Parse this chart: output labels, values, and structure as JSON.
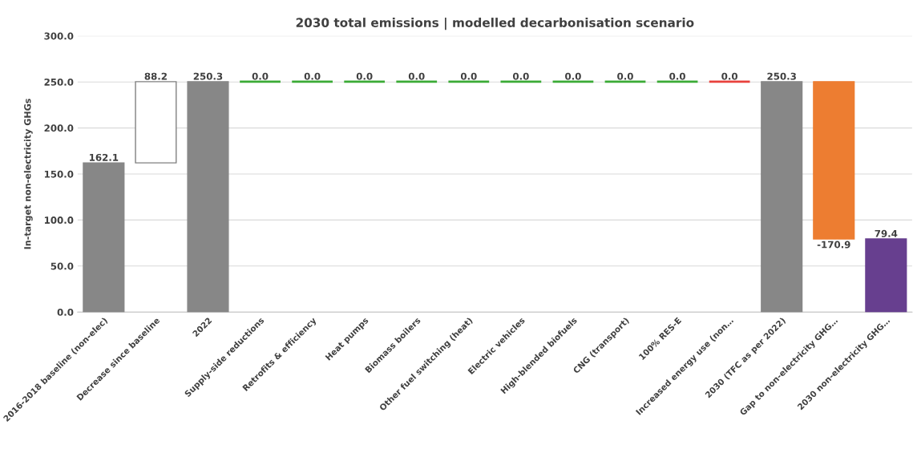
{
  "chart_data": {
    "type": "bar",
    "title": "2030 total emissions | modelled decarbonisation scenario",
    "ylabel": "In-target non-electricity GHGs",
    "categories": [
      "2016-2018 baseline (non-elec)",
      "Decrease since baseline",
      "2022",
      "Supply-side reductions",
      "Retrofits & efficiency",
      "Heat pumps",
      "Biomass boilers",
      "Other fuel switching (heat)",
      "Electric vehicles",
      "High-blended biofuels",
      "CNG (transport)",
      "100% RES-E",
      "Increased energy use (non…",
      "2030 (TFC as per 2022)",
      "Gap to non-electricity GHG…",
      "2030 non-electricity GHG…"
    ],
    "values": [
      162.1,
      88.2,
      250.3,
      0.0,
      0.0,
      0.0,
      0.0,
      0.0,
      0.0,
      0.0,
      0.0,
      0.0,
      0.0,
      250.3,
      -170.9,
      79.4
    ],
    "base": [
      0,
      162.1,
      0,
      250.3,
      250.3,
      250.3,
      250.3,
      250.3,
      250.3,
      250.3,
      250.3,
      250.3,
      250.3,
      0,
      250.3,
      0
    ],
    "colors": [
      "#878787",
      "#ffffff",
      "#878787",
      "#3aaa35",
      "#3aaa35",
      "#3aaa35",
      "#3aaa35",
      "#3aaa35",
      "#3aaa35",
      "#3aaa35",
      "#3aaa35",
      "#3aaa35",
      "#e8413c",
      "#878787",
      "#ed7d31",
      "#673f8f"
    ],
    "value_labels": [
      "162.1",
      "88.2",
      "250.3",
      "0.0",
      "0.0",
      "0.0",
      "0.0",
      "0.0",
      "0.0",
      "0.0",
      "0.0",
      "0.0",
      "0.0",
      "250.3",
      "-170.9",
      "79.4"
    ],
    "ylim": [
      0,
      300
    ],
    "yticks": [
      {
        "value": 0,
        "label": "0.0"
      },
      {
        "value": 50,
        "label": "50.0"
      },
      {
        "value": 100,
        "label": "100.0"
      },
      {
        "value": 150,
        "label": "150.0"
      },
      {
        "value": 200,
        "label": "200.0"
      },
      {
        "value": 250,
        "label": "250.0"
      },
      {
        "value": 300,
        "label": "300.0"
      }
    ],
    "grid": "y",
    "legend": false
  }
}
